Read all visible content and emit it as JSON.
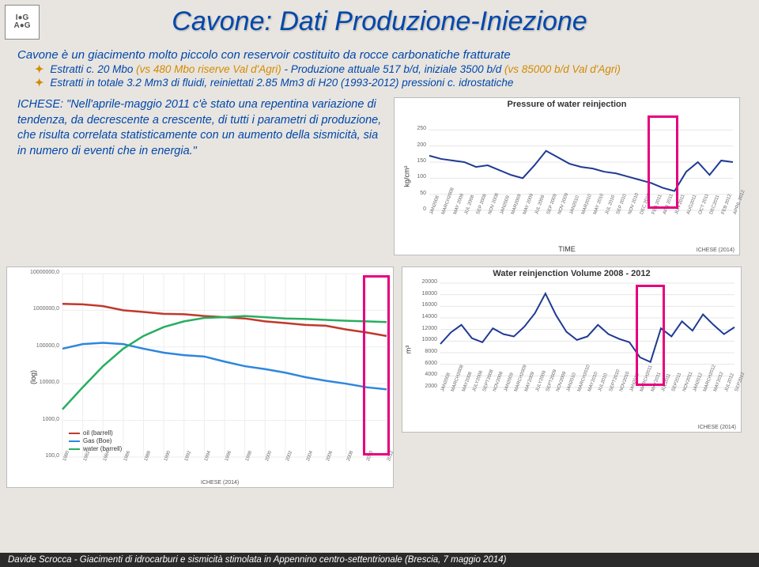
{
  "title": "Cavone: Dati Produzione-Iniezione",
  "intro": "Cavone è un giacimento molto piccolo con reservoir costituito da rocce carbonatiche fratturate",
  "bullet1": {
    "main": "Estratti c. 20 Mbo ",
    "sub": "(vs 480 Mbo riserve Val d'Agri)",
    "tail": " - Produzione attuale 517 b/d, iniziale 3500 b/d ",
    "sub2": "(vs 85000 b/d Val d'Agri)"
  },
  "bullet2": "Estratti in totale 3.2 Mm3 di fluidi, reiniettati 2.85 Mm3 di H20 (1993-2012) pressioni c. idrostatiche",
  "quote_src": "ICHESE: ",
  "quote_text": "\"Nell'aprile-maggio 2011 c'è stato una repentina variazione di tendenza, da decrescente a crescente, di tutti i parametri di produzione, che risulta correlata statisticamente con un aumento della sismicità, sia in numero di eventi che in energia.\"",
  "pressure_chart": {
    "title": "Pressure of water reinjection",
    "ylabel": "kg/cm²",
    "xlabel": "TIME",
    "colors": {
      "line": "#1f3a93",
      "grid": "#e6e6e6"
    },
    "ylim": [
      0,
      300
    ],
    "yticks": [
      0,
      50,
      100,
      150,
      200,
      250
    ],
    "xticks": [
      "JAN2008",
      "MARCH2008",
      "MAY 2008",
      "JUL 2008",
      "SEP 2008",
      "NOV 2008",
      "JAN2009",
      "MAR2009",
      "MAY 2009",
      "JUL 2009",
      "SEP 2009",
      "NOV 2009",
      "JAN2010",
      "MAR2010",
      "MAY 2010",
      "JUL 2010",
      "SEP 2010",
      "NOV 2010",
      "DEC 2010",
      "FEB 2011",
      "APR 2011",
      "JUN 2011",
      "AUG2011",
      "OCT 2011",
      "DEC2011",
      "FEB 2012",
      "APRIL 2012"
    ],
    "values": [
      170,
      160,
      155,
      150,
      135,
      140,
      125,
      110,
      100,
      140,
      185,
      165,
      145,
      135,
      130,
      120,
      115,
      105,
      95,
      85,
      70,
      60,
      120,
      150,
      110,
      155,
      150
    ],
    "highlight_range": [
      19,
      21
    ],
    "source": "ICHESE (2014)"
  },
  "log_chart": {
    "ylabel": "(log)",
    "colors": {
      "oil": "#c0392b",
      "gas": "#2e86de",
      "water": "#27ae60",
      "grid": "#eeeeee"
    },
    "legend": [
      {
        "label": "oil (barrell)",
        "color": "#c0392b"
      },
      {
        "label": "Gas (Boe)",
        "color": "#2e86de"
      },
      {
        "label": "water (barrell)",
        "color": "#27ae60"
      }
    ],
    "yticks": [
      "100,0",
      "1000,0",
      "10000,0",
      "100000,0",
      "1000000,0",
      "10000000,0"
    ],
    "xticks": [
      "1980",
      "1982",
      "1984",
      "1986",
      "1988",
      "1990",
      "1992",
      "1994",
      "1996",
      "1998",
      "2000",
      "2002",
      "2004",
      "2006",
      "2008",
      "2010",
      "2012"
    ],
    "oil": [
      1500000,
      1450000,
      1300000,
      1000000,
      900000,
      800000,
      780000,
      700000,
      650000,
      600000,
      500000,
      450000,
      400000,
      380000,
      300000,
      250000,
      200000
    ],
    "gas": [
      90000,
      120000,
      130000,
      120000,
      90000,
      70000,
      60000,
      55000,
      40000,
      30000,
      25000,
      20000,
      15000,
      12000,
      10000,
      8000,
      7000
    ],
    "water": [
      2000,
      8000,
      30000,
      90000,
      200000,
      350000,
      500000,
      620000,
      650000,
      700000,
      650000,
      600000,
      580000,
      550000,
      520000,
      500000,
      480000
    ],
    "highlight_range": [
      15,
      16
    ],
    "source": "ICHESE (2014)"
  },
  "reinj_chart": {
    "title": "Water reinjenction Volume 2008 - 2012",
    "ylabel": "m³",
    "colors": {
      "line": "#1f3a93",
      "grid": "#e6e6e6"
    },
    "yticks": [
      2000,
      4000,
      6000,
      8000,
      10000,
      12000,
      14000,
      16000,
      18000,
      20000
    ],
    "xticks": [
      "JAN2008",
      "MARCH2008",
      "MAY2008",
      "JULY2008",
      "SEPT2008",
      "NOV2008",
      "JAN2009",
      "MARCH2009",
      "MAY2009",
      "JULY2009",
      "SEPT2009",
      "NOV2009",
      "JAN2010",
      "MARCH2010",
      "MAY2010",
      "JUL2010",
      "SEPT2010",
      "NOV2010",
      "JAN2011",
      "MARCH2011",
      "MAY2011",
      "JUL2011",
      "SEP2011",
      "NOV2011",
      "JAN2012",
      "MARCH2012",
      "MAY2012",
      "JUL2012",
      "SEP2012"
    ],
    "values": [
      9500,
      11500,
      12800,
      10500,
      9800,
      12200,
      11200,
      10800,
      12500,
      14800,
      18200,
      14500,
      11600,
      10200,
      10800,
      12800,
      11200,
      10400,
      9800,
      7200,
      6400,
      12200,
      10800,
      13400,
      11800,
      14600,
      12800,
      11200,
      12400
    ],
    "highlight_range": [
      19,
      21
    ],
    "source": "ICHESE (2014)"
  },
  "footer": "Davide Scrocca - Giacimenti di idrocarburi e sismicità stimolata in Appennino centro-settentrionale (Brescia, 7 maggio 2014)"
}
